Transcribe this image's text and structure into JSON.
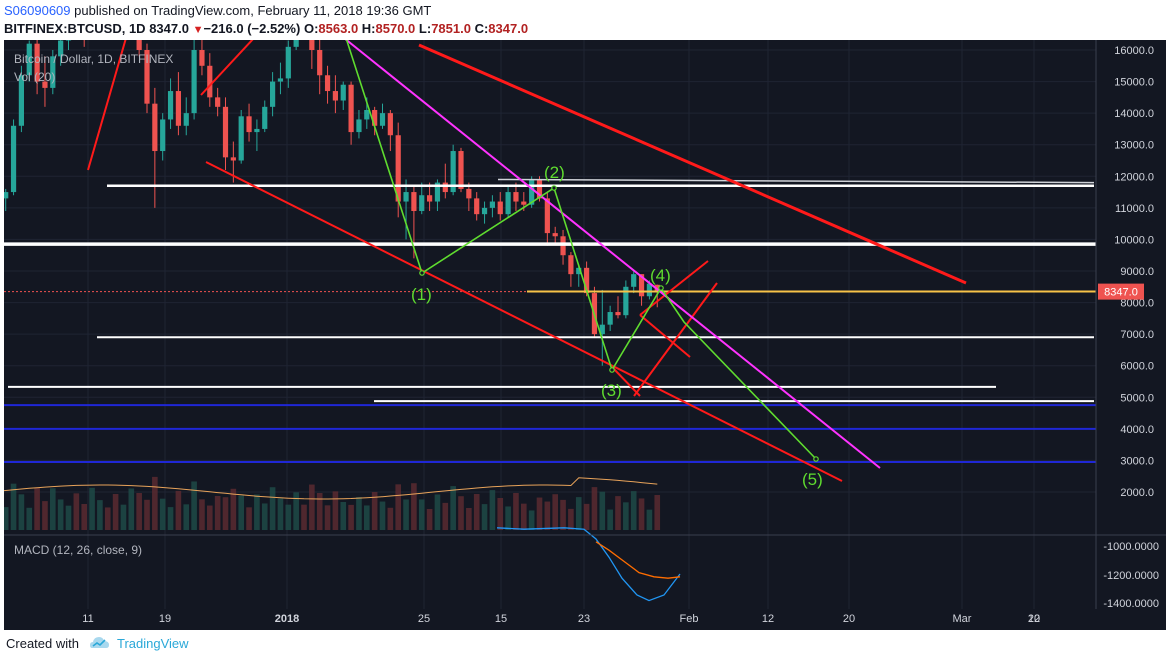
{
  "header": {
    "user": "S06090609",
    "published": "published on TradingView.com, February 11, 2018 19:36 GMT",
    "symbol": "BITFINEX:BTCUSD, 1D",
    "last": "8347.0",
    "change": "−216.0 (−2.52%)",
    "o_label": "O:",
    "o": "8563.0",
    "h_label": "H:",
    "h": "8570.0",
    "l_label": "L:",
    "l": "7851.0",
    "c_label": "C:",
    "c": "8347.0"
  },
  "legend": {
    "main": "Bitcoin / Dollar, 1D, BITFINEX",
    "vol": "Vol (20)",
    "macd": "MACD (12, 26, close, 9)"
  },
  "footer": {
    "created_with": "Created with",
    "brand": "TradingView"
  },
  "colors": {
    "bg": "#131722",
    "up": "#26a69a",
    "down": "#ef5350",
    "wave": "#5fdc2f",
    "magenta": "#ff33ff",
    "red_line": "#ff1a1a",
    "support": "#ffffff",
    "blue_support": "#1f27d6",
    "price_line": "#f7c348",
    "price_tag": "#ef5350",
    "macd": "#2196f3",
    "signal": "#ff6d00"
  },
  "chart_data": {
    "type": "candlestick",
    "title": "Bitcoin / Dollar, 1D, BITFINEX",
    "price_axis": {
      "ticks": [
        "2000.0",
        "3000.0",
        "4000.0",
        "5000.0",
        "6000.0",
        "7000.0",
        "8000.0",
        "9000.0",
        "10000.0",
        "11000.0",
        "12000.0",
        "13000.0",
        "14000.0",
        "15000.0",
        "16000.0"
      ],
      "range": [
        1900,
        16300
      ]
    },
    "time_axis": {
      "ticks": [
        "11",
        "19",
        "2018",
        "25",
        "15",
        "23",
        "Feb",
        "12",
        "20",
        "Mar",
        "12",
        "20"
      ]
    },
    "last_price_label": "8347.0",
    "candles": [
      {
        "o": 10300,
        "h": 10900,
        "l": 10200,
        "c": 10700
      },
      {
        "o": 10700,
        "h": 11400,
        "l": 10500,
        "c": 11300
      },
      {
        "o": 11300,
        "h": 11600,
        "l": 10900,
        "c": 11500
      },
      {
        "o": 11500,
        "h": 13800,
        "l": 11400,
        "c": 13600
      },
      {
        "o": 13600,
        "h": 15500,
        "l": 13400,
        "c": 15200
      },
      {
        "o": 15200,
        "h": 16300,
        "l": 15000,
        "c": 16200
      },
      {
        "o": 16200,
        "h": 17000,
        "l": 14600,
        "c": 15000
      },
      {
        "o": 15000,
        "h": 15800,
        "l": 14200,
        "c": 14800
      },
      {
        "o": 14800,
        "h": 16000,
        "l": 14600,
        "c": 15800
      },
      {
        "o": 15800,
        "h": 16500,
        "l": 15500,
        "c": 16300
      },
      {
        "o": 16300,
        "h": 17500,
        "l": 16000,
        "c": 17300
      },
      {
        "o": 17300,
        "h": 17700,
        "l": 16500,
        "c": 16800
      },
      {
        "o": 16800,
        "h": 17000,
        "l": 16100,
        "c": 16600
      },
      {
        "o": 16600,
        "h": 17800,
        "l": 16500,
        "c": 17700
      },
      {
        "o": 17700,
        "h": 18000,
        "l": 17300,
        "c": 17800
      },
      {
        "o": 17800,
        "h": 18000,
        "l": 17000,
        "c": 17200
      },
      {
        "o": 17200,
        "h": 17400,
        "l": 16500,
        "c": 16800
      },
      {
        "o": 16800,
        "h": 17200,
        "l": 16600,
        "c": 17000
      },
      {
        "o": 17000,
        "h": 17900,
        "l": 16900,
        "c": 17500
      },
      {
        "o": 17500,
        "h": 17600,
        "l": 15800,
        "c": 16000
      },
      {
        "o": 16000,
        "h": 16200,
        "l": 14000,
        "c": 14300
      },
      {
        "o": 14300,
        "h": 14800,
        "l": 11000,
        "c": 12800
      },
      {
        "o": 12800,
        "h": 14000,
        "l": 12500,
        "c": 13800
      },
      {
        "o": 13800,
        "h": 15100,
        "l": 13500,
        "c": 14700
      },
      {
        "o": 14700,
        "h": 15300,
        "l": 13300,
        "c": 13600
      },
      {
        "o": 13600,
        "h": 14500,
        "l": 13300,
        "c": 14000
      },
      {
        "o": 14000,
        "h": 16600,
        "l": 13800,
        "c": 16000
      },
      {
        "o": 16000,
        "h": 16400,
        "l": 15200,
        "c": 15500
      },
      {
        "o": 15500,
        "h": 15900,
        "l": 14200,
        "c": 14500
      },
      {
        "o": 14500,
        "h": 14800,
        "l": 13900,
        "c": 14200
      },
      {
        "o": 14200,
        "h": 14500,
        "l": 12200,
        "c": 12600
      },
      {
        "o": 12600,
        "h": 13100,
        "l": 11800,
        "c": 12500
      },
      {
        "o": 12500,
        "h": 14100,
        "l": 12400,
        "c": 13900
      },
      {
        "o": 13900,
        "h": 14300,
        "l": 13100,
        "c": 13400
      },
      {
        "o": 13400,
        "h": 13800,
        "l": 12800,
        "c": 13500
      },
      {
        "o": 13500,
        "h": 14400,
        "l": 13400,
        "c": 14200
      },
      {
        "o": 14200,
        "h": 15300,
        "l": 13900,
        "c": 15000
      },
      {
        "o": 15000,
        "h": 15600,
        "l": 14600,
        "c": 15100
      },
      {
        "o": 15100,
        "h": 16300,
        "l": 14800,
        "c": 16100
      },
      {
        "o": 16100,
        "h": 17200,
        "l": 16000,
        "c": 17000
      },
      {
        "o": 17000,
        "h": 17300,
        "l": 16700,
        "c": 16900
      },
      {
        "o": 16900,
        "h": 17100,
        "l": 15400,
        "c": 16000
      },
      {
        "o": 16000,
        "h": 16400,
        "l": 14600,
        "c": 15200
      },
      {
        "o": 15200,
        "h": 15500,
        "l": 14300,
        "c": 14700
      },
      {
        "o": 14700,
        "h": 15200,
        "l": 14000,
        "c": 14400
      },
      {
        "o": 14400,
        "h": 15000,
        "l": 14100,
        "c": 14900
      },
      {
        "o": 14900,
        "h": 15000,
        "l": 13000,
        "c": 13400
      },
      {
        "o": 13400,
        "h": 14100,
        "l": 13200,
        "c": 13800
      },
      {
        "o": 13800,
        "h": 14500,
        "l": 13500,
        "c": 14100
      },
      {
        "o": 14100,
        "h": 14200,
        "l": 13300,
        "c": 13600
      },
      {
        "o": 13600,
        "h": 14300,
        "l": 13500,
        "c": 14000
      },
      {
        "o": 14000,
        "h": 14100,
        "l": 12800,
        "c": 13300
      },
      {
        "o": 13300,
        "h": 13700,
        "l": 10700,
        "c": 11200
      },
      {
        "o": 11200,
        "h": 11900,
        "l": 10000,
        "c": 11500
      },
      {
        "o": 11500,
        "h": 11700,
        "l": 9400,
        "c": 10900
      },
      {
        "o": 10900,
        "h": 11800,
        "l": 10800,
        "c": 11400
      },
      {
        "o": 11400,
        "h": 11800,
        "l": 10900,
        "c": 11200
      },
      {
        "o": 11200,
        "h": 11900,
        "l": 10900,
        "c": 11800
      },
      {
        "o": 11800,
        "h": 12400,
        "l": 11300,
        "c": 11500
      },
      {
        "o": 11500,
        "h": 13000,
        "l": 11400,
        "c": 12800
      },
      {
        "o": 12800,
        "h": 12900,
        "l": 11500,
        "c": 11600
      },
      {
        "o": 11600,
        "h": 11800,
        "l": 10900,
        "c": 11300
      },
      {
        "o": 11300,
        "h": 11500,
        "l": 10600,
        "c": 10800
      },
      {
        "o": 10800,
        "h": 11200,
        "l": 10500,
        "c": 11000
      },
      {
        "o": 11000,
        "h": 11400,
        "l": 10700,
        "c": 11200
      },
      {
        "o": 11200,
        "h": 11500,
        "l": 10600,
        "c": 10800
      },
      {
        "o": 10800,
        "h": 11700,
        "l": 10700,
        "c": 11500
      },
      {
        "o": 11500,
        "h": 11800,
        "l": 10900,
        "c": 11200
      },
      {
        "o": 11200,
        "h": 11500,
        "l": 10900,
        "c": 11100
      },
      {
        "o": 11100,
        "h": 12000,
        "l": 11000,
        "c": 11900
      },
      {
        "o": 11900,
        "h": 12000,
        "l": 11200,
        "c": 11300
      },
      {
        "o": 11300,
        "h": 11500,
        "l": 9800,
        "c": 10200
      },
      {
        "o": 10200,
        "h": 10400,
        "l": 9900,
        "c": 10100
      },
      {
        "o": 10100,
        "h": 10300,
        "l": 9200,
        "c": 9500
      },
      {
        "o": 9500,
        "h": 9600,
        "l": 8500,
        "c": 8900
      },
      {
        "o": 8900,
        "h": 9200,
        "l": 8500,
        "c": 9100
      },
      {
        "o": 9100,
        "h": 9300,
        "l": 8200,
        "c": 8300
      },
      {
        "o": 8300,
        "h": 8500,
        "l": 6900,
        "c": 7000
      },
      {
        "o": 7000,
        "h": 8400,
        "l": 6000,
        "c": 7300
      },
      {
        "o": 7300,
        "h": 7900,
        "l": 7100,
        "c": 7700
      },
      {
        "o": 7700,
        "h": 8200,
        "l": 7500,
        "c": 7600
      },
      {
        "o": 7600,
        "h": 8700,
        "l": 7500,
        "c": 8500
      },
      {
        "o": 8500,
        "h": 9000,
        "l": 8300,
        "c": 8900
      },
      {
        "o": 8900,
        "h": 8900,
        "l": 7900,
        "c": 8200
      },
      {
        "o": 8200,
        "h": 8700,
        "l": 8100,
        "c": 8600
      },
      {
        "o": 8563,
        "h": 8570,
        "l": 7851,
        "c": 8347
      }
    ],
    "annotations": {
      "wave_labels": [
        "(1)",
        "(2)",
        "(3)",
        "(4)",
        "(5)"
      ]
    },
    "macd_axis": {
      "ticks": [
        "-1000.0000",
        "-1200.0000",
        "-1400.0000"
      ]
    }
  }
}
